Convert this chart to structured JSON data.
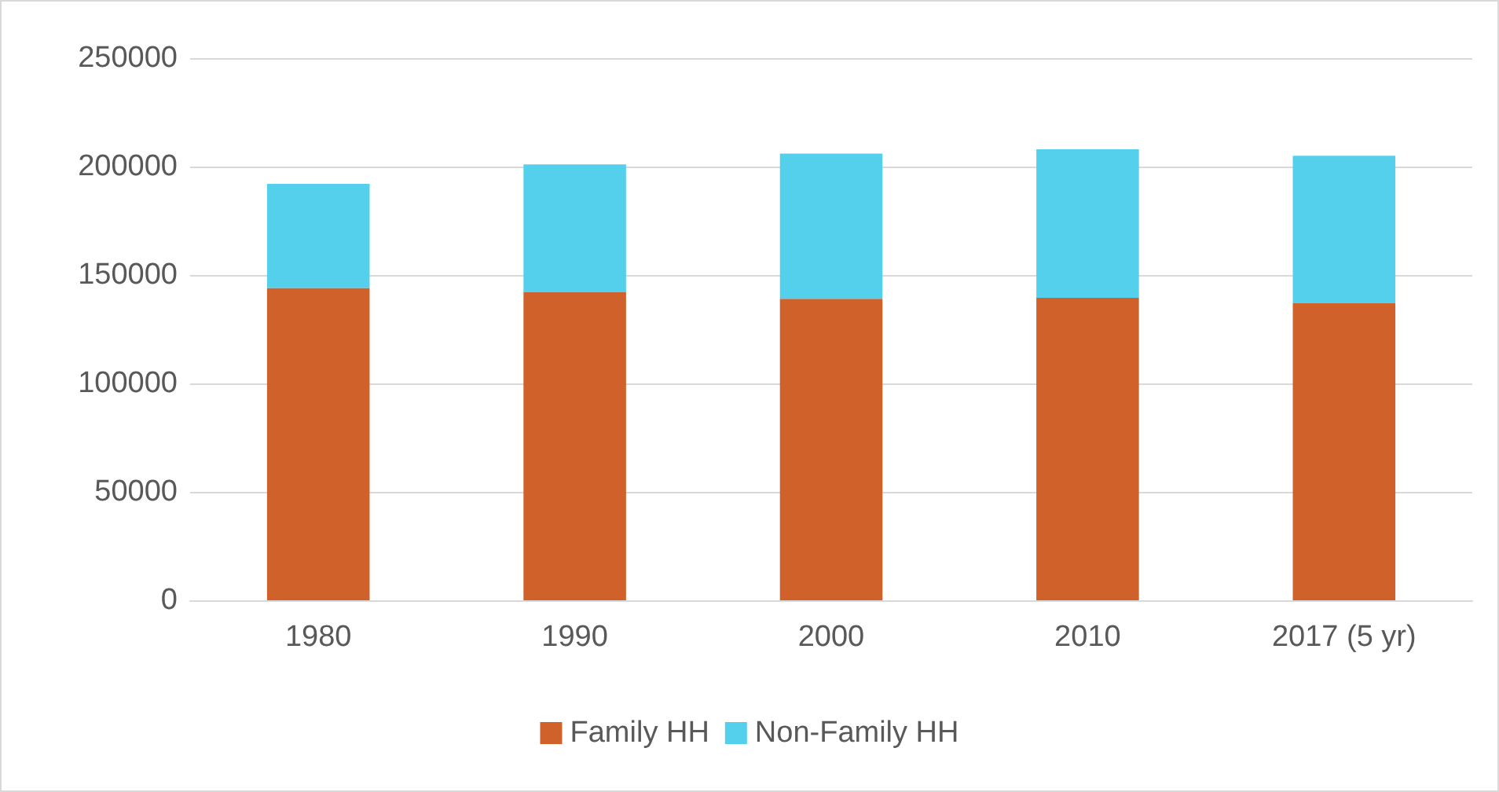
{
  "chart_data": {
    "type": "bar",
    "stacked": true,
    "categories": [
      "1980",
      "1990",
      "2000",
      "2010",
      "2017 (5 yr)"
    ],
    "series": [
      {
        "name": "Family HH",
        "color": "#d0612a",
        "values": [
          144000,
          142000,
          139000,
          139500,
          137000
        ]
      },
      {
        "name": "Non-Family HH",
        "color": "#55d0ec",
        "values": [
          48000,
          59000,
          67000,
          68500,
          68000
        ]
      }
    ],
    "ylim": [
      0,
      250000
    ],
    "yticks": [
      0,
      50000,
      100000,
      150000,
      200000,
      250000
    ],
    "grid": "y",
    "legend": "bottom"
  }
}
